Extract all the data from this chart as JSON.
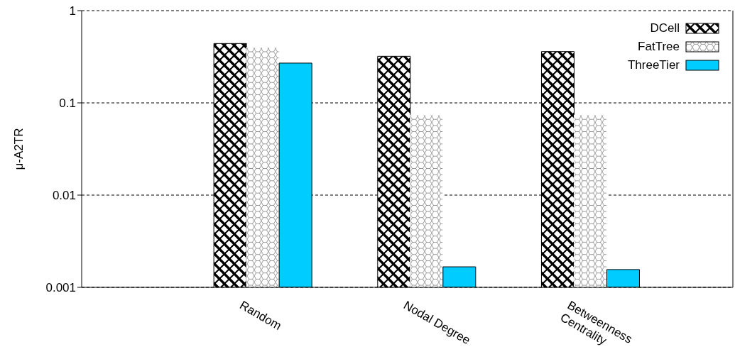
{
  "chart_data": {
    "type": "bar",
    "ylabel": "μ-A2TR",
    "categories": [
      "Random",
      "Nodal Degree",
      "Betweenness Centrality"
    ],
    "series": [
      {
        "name": "DCell",
        "color": "#000000",
        "values": [
          0.44,
          0.32,
          0.36
        ]
      },
      {
        "name": "FatTree",
        "color": "#ffffff",
        "values": [
          0.4,
          0.074,
          0.074
        ]
      },
      {
        "name": "ThreeTier",
        "color": "#00ccff",
        "values": [
          0.27,
          0.00167,
          0.00156
        ]
      }
    ],
    "log": "y",
    "ylim": [
      0.001,
      1
    ],
    "yticks": [
      0.001,
      0.01,
      0.1,
      1
    ],
    "grid": "y",
    "legend": "top right"
  }
}
